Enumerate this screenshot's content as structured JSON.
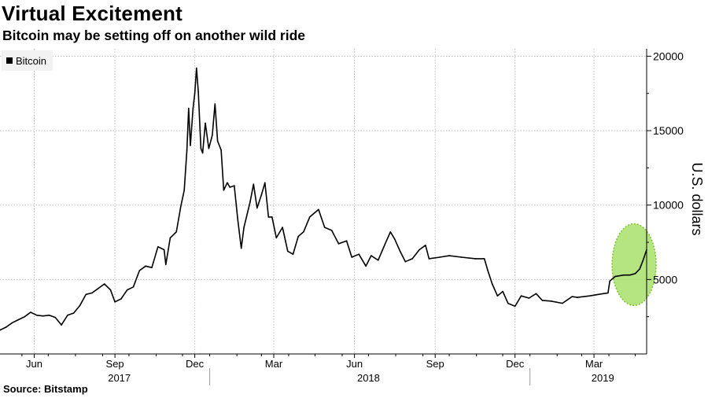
{
  "title": "Virtual Excitement",
  "subtitle": "Bitcoin may be setting off on another wild ride",
  "source": "Source: Bitstamp",
  "legend": [
    {
      "label": "Bitcoin",
      "color": "#000000"
    }
  ],
  "colors": {
    "line": "#000000",
    "grid": "#bdbdbd",
    "highlight_fill": "#a8e06a",
    "highlight_stroke": "#7cc42a"
  },
  "chart_data": {
    "type": "line",
    "title": "Virtual Excitement",
    "subtitle": "Bitcoin may be setting off on another wild ride",
    "ylabel": "U.S. dollars",
    "y_axis_position": "right",
    "ylim": [
      0,
      20500
    ],
    "y_ticks": [
      5000,
      10000,
      15000,
      20000
    ],
    "x_range": [
      "2017-05-07",
      "2019-05-14"
    ],
    "x_month_ticks": [
      {
        "date": "2017-06-15",
        "label": "Jun"
      },
      {
        "date": "2017-09-15",
        "label": "Sep"
      },
      {
        "date": "2017-12-15",
        "label": "Dec"
      },
      {
        "date": "2018-03-15",
        "label": "Mar"
      },
      {
        "date": "2018-06-15",
        "label": "Jun"
      },
      {
        "date": "2018-09-15",
        "label": "Sep"
      },
      {
        "date": "2018-12-15",
        "label": "Dec"
      },
      {
        "date": "2019-03-15",
        "label": "Mar"
      }
    ],
    "x_year_labels": [
      {
        "date": "2017-09-20",
        "label": "2017"
      },
      {
        "date": "2018-07-01",
        "label": "2018"
      },
      {
        "date": "2019-03-25",
        "label": "2019"
      }
    ],
    "year_separators": [
      "2018-01-01",
      "2019-01-01"
    ],
    "grid": true,
    "legend_position": "top-left",
    "highlight": {
      "shape": "ellipse",
      "from": "2019-04-01",
      "to": "2019-05-14"
    },
    "series": [
      {
        "name": "Bitcoin",
        "points": [
          [
            "2017-05-07",
            1600
          ],
          [
            "2017-05-14",
            1800
          ],
          [
            "2017-05-21",
            2100
          ],
          [
            "2017-05-28",
            2300
          ],
          [
            "2017-06-04",
            2500
          ],
          [
            "2017-06-11",
            2800
          ],
          [
            "2017-06-18",
            2600
          ],
          [
            "2017-06-25",
            2550
          ],
          [
            "2017-07-02",
            2600
          ],
          [
            "2017-07-09",
            2450
          ],
          [
            "2017-07-16",
            1950
          ],
          [
            "2017-07-23",
            2600
          ],
          [
            "2017-07-30",
            2750
          ],
          [
            "2017-08-06",
            3250
          ],
          [
            "2017-08-13",
            4000
          ],
          [
            "2017-08-20",
            4100
          ],
          [
            "2017-08-27",
            4400
          ],
          [
            "2017-09-03",
            4700
          ],
          [
            "2017-09-10",
            4300
          ],
          [
            "2017-09-15",
            3500
          ],
          [
            "2017-09-22",
            3700
          ],
          [
            "2017-09-29",
            4300
          ],
          [
            "2017-10-06",
            4500
          ],
          [
            "2017-10-13",
            5600
          ],
          [
            "2017-10-20",
            5900
          ],
          [
            "2017-10-27",
            5800
          ],
          [
            "2017-11-03",
            7200
          ],
          [
            "2017-11-10",
            7000
          ],
          [
            "2017-11-12",
            6000
          ],
          [
            "2017-11-17",
            7800
          ],
          [
            "2017-11-24",
            8200
          ],
          [
            "2017-11-29",
            9900
          ],
          [
            "2017-12-03",
            11000
          ],
          [
            "2017-12-06",
            13700
          ],
          [
            "2017-12-08",
            16500
          ],
          [
            "2017-12-10",
            14000
          ],
          [
            "2017-12-13",
            16500
          ],
          [
            "2017-12-15",
            17500
          ],
          [
            "2017-12-17",
            19200
          ],
          [
            "2017-12-19",
            17600
          ],
          [
            "2017-12-22",
            13800
          ],
          [
            "2017-12-24",
            13500
          ],
          [
            "2017-12-27",
            15500
          ],
          [
            "2017-12-31",
            13800
          ],
          [
            "2018-01-04",
            14700
          ],
          [
            "2018-01-07",
            16800
          ],
          [
            "2018-01-10",
            14300
          ],
          [
            "2018-01-14",
            13700
          ],
          [
            "2018-01-17",
            11000
          ],
          [
            "2018-01-21",
            11500
          ],
          [
            "2018-01-24",
            11200
          ],
          [
            "2018-01-29",
            11300
          ],
          [
            "2018-02-02",
            9000
          ],
          [
            "2018-02-06",
            7100
          ],
          [
            "2018-02-09",
            8500
          ],
          [
            "2018-02-16",
            10200
          ],
          [
            "2018-02-20",
            11400
          ],
          [
            "2018-02-24",
            9800
          ],
          [
            "2018-03-01",
            10700
          ],
          [
            "2018-03-05",
            11500
          ],
          [
            "2018-03-09",
            9200
          ],
          [
            "2018-03-13",
            9200
          ],
          [
            "2018-03-18",
            7800
          ],
          [
            "2018-03-25",
            8500
          ],
          [
            "2018-03-31",
            6900
          ],
          [
            "2018-04-06",
            6700
          ],
          [
            "2018-04-12",
            7900
          ],
          [
            "2018-04-18",
            8200
          ],
          [
            "2018-04-25",
            9200
          ],
          [
            "2018-05-05",
            9700
          ],
          [
            "2018-05-12",
            8500
          ],
          [
            "2018-05-20",
            8300
          ],
          [
            "2018-05-28",
            7400
          ],
          [
            "2018-06-06",
            7600
          ],
          [
            "2018-06-12",
            6500
          ],
          [
            "2018-06-20",
            6700
          ],
          [
            "2018-06-28",
            5900
          ],
          [
            "2018-07-04",
            6600
          ],
          [
            "2018-07-12",
            6300
          ],
          [
            "2018-07-20",
            7400
          ],
          [
            "2018-07-26",
            8200
          ],
          [
            "2018-07-31",
            7700
          ],
          [
            "2018-08-06",
            6900
          ],
          [
            "2018-08-12",
            6200
          ],
          [
            "2018-08-20",
            6400
          ],
          [
            "2018-08-28",
            7000
          ],
          [
            "2018-09-04",
            7300
          ],
          [
            "2018-09-08",
            6400
          ],
          [
            "2018-09-20",
            6500
          ],
          [
            "2018-10-01",
            6600
          ],
          [
            "2018-10-15",
            6500
          ],
          [
            "2018-10-31",
            6400
          ],
          [
            "2018-11-10",
            6400
          ],
          [
            "2018-11-14",
            5600
          ],
          [
            "2018-11-19",
            4700
          ],
          [
            "2018-11-25",
            3900
          ],
          [
            "2018-12-01",
            4200
          ],
          [
            "2018-12-07",
            3400
          ],
          [
            "2018-12-15",
            3200
          ],
          [
            "2018-12-22",
            3900
          ],
          [
            "2018-12-31",
            3750
          ],
          [
            "2019-01-08",
            4050
          ],
          [
            "2019-01-15",
            3600
          ],
          [
            "2019-01-25",
            3550
          ],
          [
            "2019-02-07",
            3400
          ],
          [
            "2019-02-18",
            3850
          ],
          [
            "2019-02-24",
            3800
          ],
          [
            "2019-03-10",
            3900
          ],
          [
            "2019-03-20",
            4000
          ],
          [
            "2019-03-31",
            4100
          ],
          [
            "2019-04-02",
            4900
          ],
          [
            "2019-04-08",
            5200
          ],
          [
            "2019-04-18",
            5300
          ],
          [
            "2019-04-25",
            5300
          ],
          [
            "2019-05-01",
            5400
          ],
          [
            "2019-05-06",
            5700
          ],
          [
            "2019-05-10",
            6300
          ],
          [
            "2019-05-14",
            7000
          ]
        ]
      }
    ]
  }
}
